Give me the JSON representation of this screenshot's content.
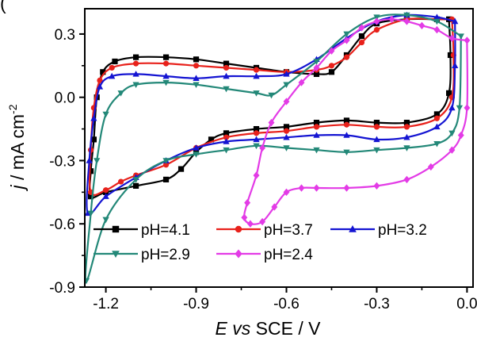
{
  "panel_label": "(",
  "chart_data": {
    "type": "line",
    "xlabel": {
      "italic": "E vs",
      "rest": " SCE / V"
    },
    "ylabel": {
      "italic": "j",
      "rest": " / mA cm",
      "sup": "-2"
    },
    "xlim": [
      -1.27,
      0.02
    ],
    "ylim": [
      -0.9,
      0.42
    ],
    "xticks": [
      -1.2,
      -0.9,
      -0.6,
      -0.3,
      0.0
    ],
    "xtick_labels": [
      "-1.2",
      "-0.9",
      "-0.6",
      "-0.3",
      "0.0"
    ],
    "yticks": [
      -0.9,
      -0.6,
      -0.3,
      0.0,
      0.3
    ],
    "ytick_labels": [
      "-0.9",
      "-0.6",
      "-0.3",
      "0.0",
      "0.3"
    ],
    "grid": false,
    "legend_position": "bottom-left",
    "series": [
      {
        "name": "pH=4.1",
        "color": "#000000",
        "marker": "square",
        "points": [
          [
            -0.06,
            0.37
          ],
          [
            -0.1,
            0.37
          ],
          [
            -0.2,
            0.37
          ],
          [
            -0.3,
            0.35
          ],
          [
            -0.35,
            0.29
          ],
          [
            -0.4,
            0.2
          ],
          [
            -0.45,
            0.12
          ],
          [
            -0.5,
            0.11
          ],
          [
            -0.6,
            0.12
          ],
          [
            -0.7,
            0.14
          ],
          [
            -0.8,
            0.16
          ],
          [
            -0.9,
            0.18
          ],
          [
            -1.0,
            0.19
          ],
          [
            -1.1,
            0.19
          ],
          [
            -1.17,
            0.17
          ],
          [
            -1.21,
            0.12
          ],
          [
            -1.23,
            0.0
          ],
          [
            -1.24,
            -0.2
          ],
          [
            -1.25,
            -0.35
          ],
          [
            -1.25,
            -0.47
          ],
          [
            -1.2,
            -0.45
          ],
          [
            -1.1,
            -0.42
          ],
          [
            -1.0,
            -0.39
          ],
          [
            -0.95,
            -0.34
          ],
          [
            -0.9,
            -0.26
          ],
          [
            -0.85,
            -0.2
          ],
          [
            -0.8,
            -0.17
          ],
          [
            -0.7,
            -0.15
          ],
          [
            -0.6,
            -0.14
          ],
          [
            -0.5,
            -0.12
          ],
          [
            -0.4,
            -0.11
          ],
          [
            -0.3,
            -0.12
          ],
          [
            -0.2,
            -0.12
          ],
          [
            -0.1,
            -0.08
          ],
          [
            -0.06,
            0.02
          ],
          [
            -0.055,
            0.2
          ],
          [
            -0.06,
            0.37
          ]
        ]
      },
      {
        "name": "pH=3.7",
        "color": "#e8211b",
        "marker": "circle",
        "points": [
          [
            -0.05,
            0.37
          ],
          [
            -0.1,
            0.37
          ],
          [
            -0.2,
            0.37
          ],
          [
            -0.3,
            0.32
          ],
          [
            -0.35,
            0.26
          ],
          [
            -0.4,
            0.19
          ],
          [
            -0.45,
            0.15
          ],
          [
            -0.5,
            0.13
          ],
          [
            -0.6,
            0.12
          ],
          [
            -0.7,
            0.13
          ],
          [
            -0.8,
            0.14
          ],
          [
            -0.9,
            0.15
          ],
          [
            -1.0,
            0.16
          ],
          [
            -1.1,
            0.16
          ],
          [
            -1.18,
            0.14
          ],
          [
            -1.22,
            0.08
          ],
          [
            -1.24,
            -0.05
          ],
          [
            -1.25,
            -0.25
          ],
          [
            -1.25,
            -0.45
          ],
          [
            -1.2,
            -0.44
          ],
          [
            -1.15,
            -0.4
          ],
          [
            -1.1,
            -0.37
          ],
          [
            -1.0,
            -0.32
          ],
          [
            -0.9,
            -0.24
          ],
          [
            -0.8,
            -0.19
          ],
          [
            -0.7,
            -0.17
          ],
          [
            -0.6,
            -0.16
          ],
          [
            -0.5,
            -0.14
          ],
          [
            -0.4,
            -0.13
          ],
          [
            -0.3,
            -0.14
          ],
          [
            -0.2,
            -0.14
          ],
          [
            -0.1,
            -0.1
          ],
          [
            -0.05,
            0.0
          ],
          [
            -0.045,
            0.2
          ],
          [
            -0.05,
            0.37
          ]
        ]
      },
      {
        "name": "pH=3.2",
        "color": "#1414d2",
        "marker": "triangle-up",
        "points": [
          [
            -0.04,
            0.36
          ],
          [
            -0.1,
            0.38
          ],
          [
            -0.2,
            0.39
          ],
          [
            -0.3,
            0.36
          ],
          [
            -0.4,
            0.28
          ],
          [
            -0.5,
            0.18
          ],
          [
            -0.6,
            0.11
          ],
          [
            -0.7,
            0.1
          ],
          [
            -0.8,
            0.1
          ],
          [
            -0.9,
            0.09
          ],
          [
            -1.0,
            0.1
          ],
          [
            -1.1,
            0.11
          ],
          [
            -1.18,
            0.1
          ],
          [
            -1.22,
            0.05
          ],
          [
            -1.24,
            -0.1
          ],
          [
            -1.255,
            -0.3
          ],
          [
            -1.26,
            -0.55
          ],
          [
            -1.2,
            -0.47
          ],
          [
            -1.1,
            -0.38
          ],
          [
            -1.0,
            -0.3
          ],
          [
            -0.9,
            -0.24
          ],
          [
            -0.8,
            -0.21
          ],
          [
            -0.7,
            -0.2
          ],
          [
            -0.6,
            -0.19
          ],
          [
            -0.5,
            -0.18
          ],
          [
            -0.4,
            -0.18
          ],
          [
            -0.3,
            -0.2
          ],
          [
            -0.2,
            -0.19
          ],
          [
            -0.1,
            -0.14
          ],
          [
            -0.05,
            -0.05
          ],
          [
            -0.04,
            0.15
          ],
          [
            -0.04,
            0.36
          ]
        ]
      },
      {
        "name": "pH=2.9",
        "color": "#238878",
        "marker": "triangle-down",
        "points": [
          [
            -0.02,
            0.29
          ],
          [
            -0.1,
            0.36
          ],
          [
            -0.2,
            0.39
          ],
          [
            -0.3,
            0.38
          ],
          [
            -0.4,
            0.3
          ],
          [
            -0.5,
            0.17
          ],
          [
            -0.6,
            0.06
          ],
          [
            -0.65,
            0.01
          ],
          [
            -0.7,
            0.02
          ],
          [
            -0.8,
            0.04
          ],
          [
            -0.9,
            0.06
          ],
          [
            -1.0,
            0.07
          ],
          [
            -1.1,
            0.06
          ],
          [
            -1.15,
            0.02
          ],
          [
            -1.2,
            -0.08
          ],
          [
            -1.23,
            -0.3
          ],
          [
            -1.25,
            -0.55
          ],
          [
            -1.265,
            -0.87
          ],
          [
            -1.2,
            -0.58
          ],
          [
            -1.1,
            -0.39
          ],
          [
            -1.0,
            -0.3
          ],
          [
            -0.9,
            -0.27
          ],
          [
            -0.8,
            -0.25
          ],
          [
            -0.7,
            -0.23
          ],
          [
            -0.6,
            -0.24
          ],
          [
            -0.5,
            -0.25
          ],
          [
            -0.4,
            -0.26
          ],
          [
            -0.3,
            -0.25
          ],
          [
            -0.2,
            -0.24
          ],
          [
            -0.1,
            -0.22
          ],
          [
            -0.05,
            -0.17
          ],
          [
            -0.025,
            -0.05
          ],
          [
            -0.02,
            0.29
          ]
        ]
      },
      {
        "name": "pH=2.4",
        "color": "#e33be6",
        "marker": "diamond",
        "points": [
          [
            0.0,
            0.27
          ],
          [
            -0.05,
            0.28
          ],
          [
            -0.1,
            0.32
          ],
          [
            -0.15,
            0.34
          ],
          [
            -0.2,
            0.36
          ],
          [
            -0.25,
            0.37
          ],
          [
            -0.3,
            0.36
          ],
          [
            -0.35,
            0.33
          ],
          [
            -0.4,
            0.27
          ],
          [
            -0.45,
            0.22
          ],
          [
            -0.5,
            0.14
          ],
          [
            -0.55,
            0.07
          ],
          [
            -0.6,
            -0.02
          ],
          [
            -0.65,
            -0.12
          ],
          [
            -0.68,
            -0.24
          ],
          [
            -0.7,
            -0.37
          ],
          [
            -0.73,
            -0.5
          ],
          [
            -0.74,
            -0.57
          ],
          [
            -0.72,
            -0.6
          ],
          [
            -0.68,
            -0.59
          ],
          [
            -0.64,
            -0.52
          ],
          [
            -0.6,
            -0.45
          ],
          [
            -0.55,
            -0.43
          ],
          [
            -0.5,
            -0.43
          ],
          [
            -0.4,
            -0.43
          ],
          [
            -0.3,
            -0.42
          ],
          [
            -0.2,
            -0.39
          ],
          [
            -0.12,
            -0.33
          ],
          [
            -0.05,
            -0.25
          ],
          [
            -0.02,
            -0.18
          ],
          [
            0.0,
            -0.05
          ],
          [
            0.0,
            0.27
          ]
        ]
      }
    ]
  }
}
